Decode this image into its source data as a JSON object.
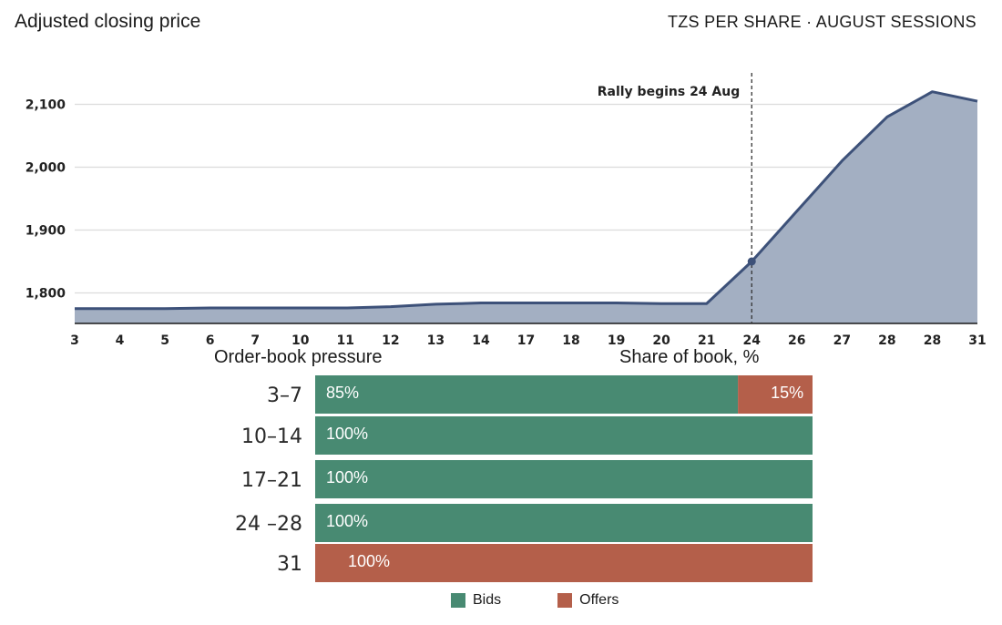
{
  "header": {
    "title": "Adjusted closing price",
    "units": "TZS PER SHARE · AUGUST SESSIONS"
  },
  "colors": {
    "area_fill": "#a3afc2",
    "line": "#3d5179",
    "bids": "#488a72",
    "offers": "#b45f4a",
    "grid": "#dcdcdc"
  },
  "chart_data": [
    {
      "type": "area",
      "title": "Adjusted closing price",
      "subtitle": "TZS PER SHARE · AUGUST SESSIONS",
      "categories": [
        "3",
        "4",
        "5",
        "6",
        "7",
        "10",
        "11",
        "12",
        "13",
        "14",
        "17",
        "18",
        "19",
        "20",
        "21",
        "24",
        "26",
        "27",
        "28",
        "28",
        "31"
      ],
      "values": [
        1775,
        1775,
        1775,
        1776,
        1776,
        1776,
        1776,
        1778,
        1782,
        1784,
        1784,
        1784,
        1784,
        1783,
        1783,
        1850,
        1930,
        2010,
        2080,
        2120,
        2105
      ],
      "yticks": [
        1800,
        1900,
        2000,
        2100
      ],
      "ylim": [
        1750,
        2145
      ],
      "grid": true,
      "annotation": {
        "label": "Rally begins 24 Aug",
        "category_index": 15
      }
    },
    {
      "type": "bar",
      "orientation": "horizontal-stacked",
      "title": "Order-book pressure",
      "xlabel": "Share of book, %",
      "categories": [
        "3–7",
        "10–14",
        "17–21",
        "24 –28",
        "31"
      ],
      "series": [
        {
          "name": "Bids",
          "values": [
            85,
            100,
            100,
            100,
            0
          ],
          "labels": [
            "85%",
            "100%",
            "100%",
            "100%",
            ""
          ]
        },
        {
          "name": "Offers",
          "values": [
            15,
            0,
            0,
            0,
            100
          ],
          "labels": [
            "15%",
            "",
            "",
            "",
            "100%"
          ]
        }
      ],
      "legend": "bottom"
    }
  ]
}
